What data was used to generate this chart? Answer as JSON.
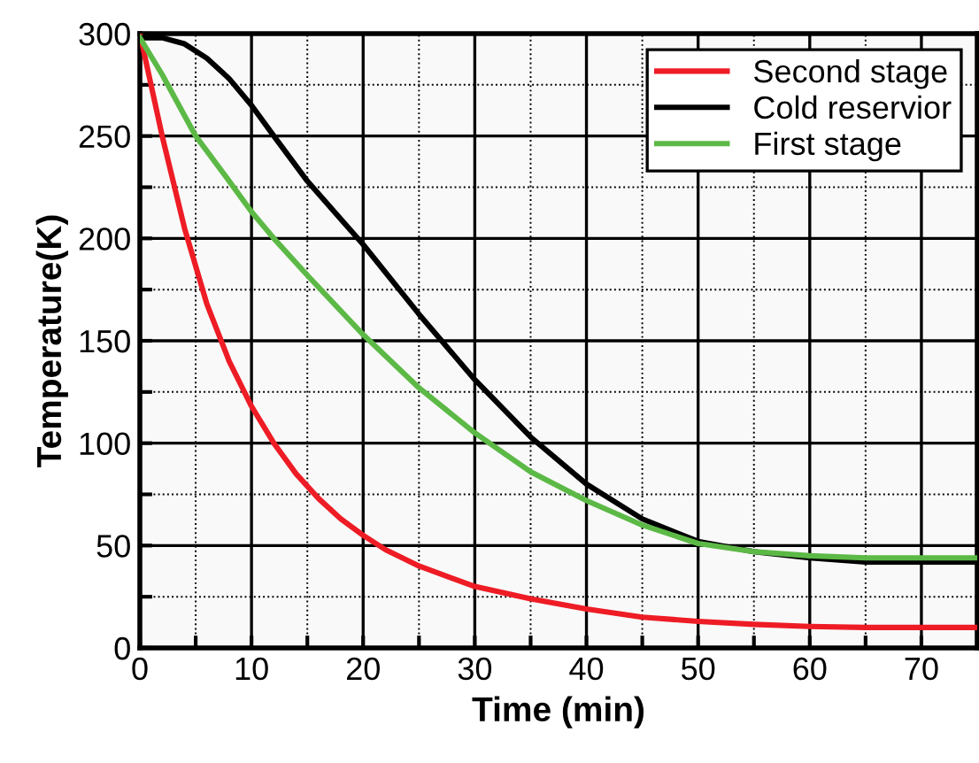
{
  "chart_data": {
    "type": "line",
    "xlabel": "Time (min)",
    "ylabel": "Temperature(K)",
    "xlim": [
      0,
      75
    ],
    "ylim": [
      0,
      300
    ],
    "xticks": [
      0,
      {
        "value": 5,
        "label": null
      },
      10,
      {
        "value": 15,
        "label": null
      },
      20,
      {
        "value": 25,
        "label": null
      },
      30,
      {
        "value": 35,
        "label": null
      },
      40,
      {
        "value": 45,
        "label": null
      },
      50,
      {
        "value": 55,
        "label": null
      },
      60,
      {
        "value": 65,
        "label": null
      },
      70,
      {
        "value": 75,
        "label": null
      }
    ],
    "yticks": [
      0,
      {
        "value": 25,
        "label": null
      },
      50,
      {
        "value": 75,
        "label": null
      },
      100,
      {
        "value": 125,
        "label": null
      },
      150,
      {
        "value": 175,
        "label": null
      },
      200,
      {
        "value": 225,
        "label": null
      },
      250,
      {
        "value": 275,
        "label": null
      },
      300
    ],
    "grid": true,
    "legend": "top right",
    "line_style": "solid",
    "marker": "none",
    "series": [
      {
        "name": "Second stage",
        "color": "#ee1c25",
        "x": [
          0,
          2,
          4,
          6,
          8,
          10,
          12,
          14,
          16,
          18,
          20,
          22,
          25,
          30,
          35,
          40,
          45,
          50,
          55,
          60,
          65,
          70,
          75
        ],
        "values": [
          300,
          250,
          205,
          168,
          140,
          118,
          100,
          85,
          73,
          63,
          55,
          48,
          40,
          30,
          24,
          19,
          15,
          13,
          11.5,
          10.5,
          10,
          10,
          10
        ]
      },
      {
        "name": "Cold reservior",
        "color": "#000000",
        "x": [
          0,
          2,
          4,
          6,
          8,
          10,
          12,
          15,
          20,
          25,
          30,
          35,
          40,
          45,
          50,
          55,
          60,
          65,
          70,
          75
        ],
        "values": [
          298,
          298,
          295,
          288,
          278,
          265,
          250,
          228,
          197,
          163,
          131,
          103,
          80,
          63,
          52,
          47,
          44,
          42,
          42,
          42
        ]
      },
      {
        "name": "First stage",
        "color": "#5cb946",
        "x": [
          0,
          2,
          5,
          8,
          10,
          12,
          15,
          20,
          25,
          30,
          35,
          40,
          45,
          50,
          55,
          60,
          65,
          70,
          75
        ],
        "values": [
          298,
          280,
          250,
          228,
          213,
          200,
          182,
          153,
          127,
          105,
          86,
          72,
          60,
          51,
          47,
          45,
          44,
          44,
          44
        ]
      }
    ]
  }
}
